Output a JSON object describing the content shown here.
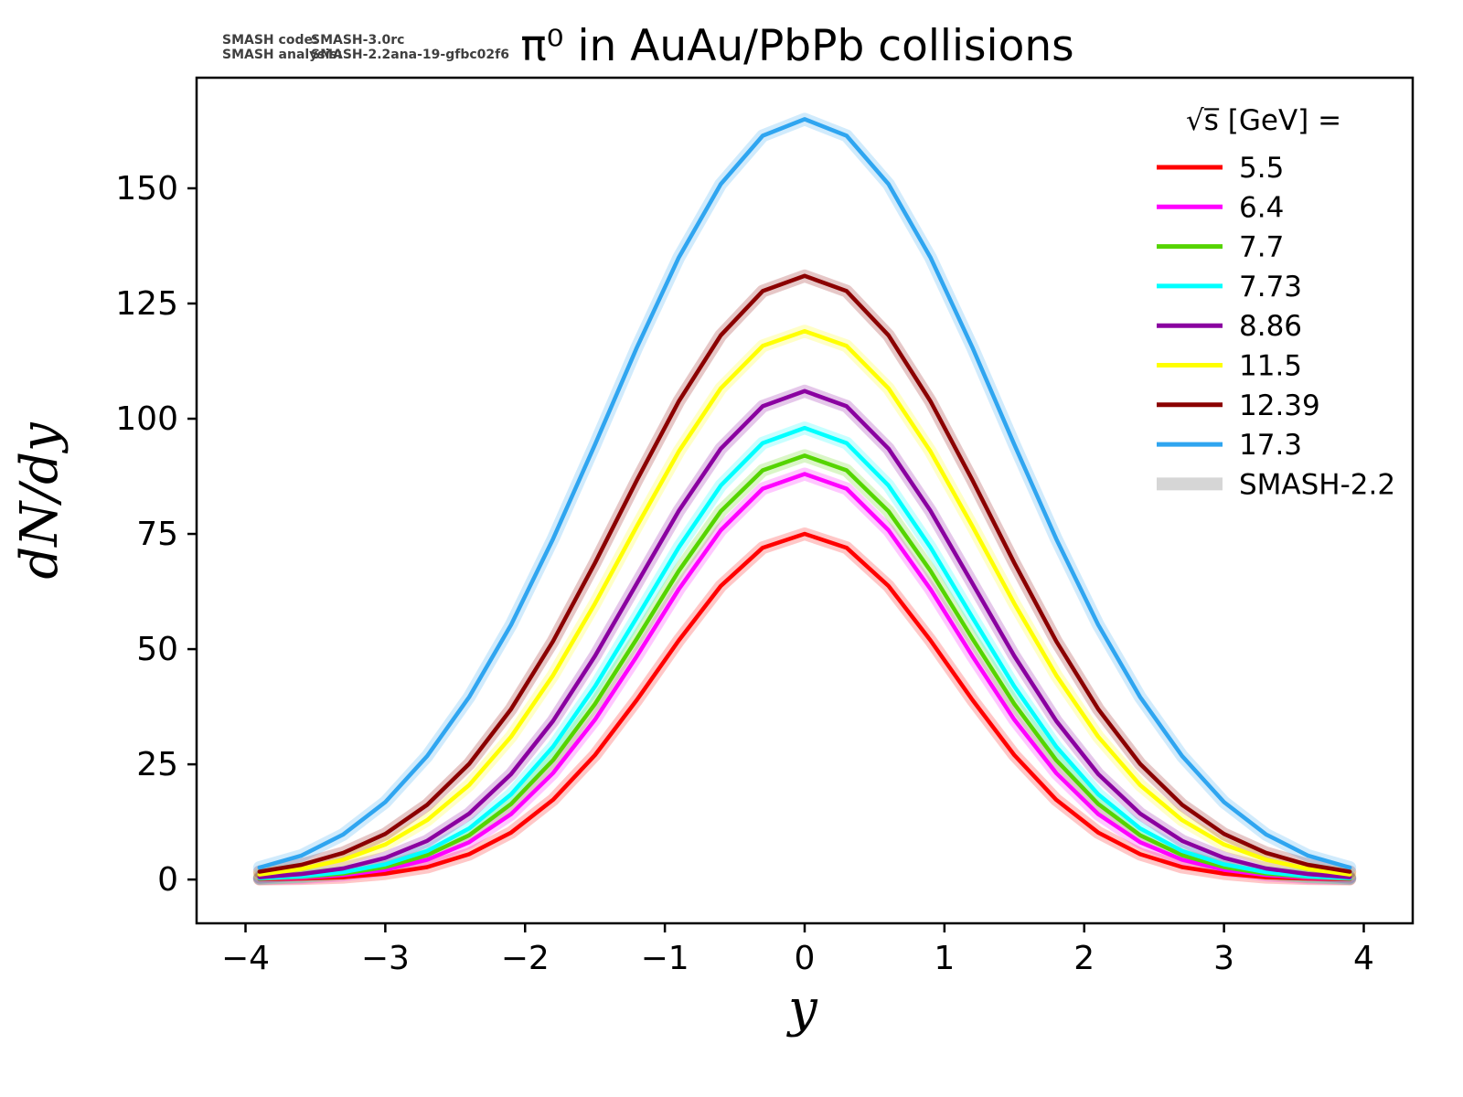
{
  "annotations": {
    "code_label": "SMASH code:",
    "code_value": "SMASH-3.0rc",
    "analysis_label": "SMASH analysis:",
    "analysis_value": "SMASH-2.2ana-19-gfbc02f6"
  },
  "chart_data": {
    "type": "line",
    "title": "π⁰ in AuAu/PbPb collisions",
    "xlabel": "y",
    "ylabel": "dN/dy",
    "xlim": [
      -4.35,
      4.35
    ],
    "ylim": [
      -9.5,
      174
    ],
    "grid": false,
    "legend_position": "upper right",
    "legend_title": "√s̅  [GeV] =",
    "band_label": "SMASH-2.2",
    "band_color": "#d6d6d6",
    "xticks": [
      -4,
      -3,
      -2,
      -1,
      0,
      1,
      2,
      3,
      4
    ],
    "xtick_labels": [
      "−4",
      "−3",
      "−2",
      "−1",
      "0",
      "1",
      "2",
      "3",
      "4"
    ],
    "yticks": [
      0,
      25,
      50,
      75,
      100,
      125,
      150
    ],
    "ytick_labels": [
      "0",
      "25",
      "50",
      "75",
      "100",
      "125",
      "150"
    ],
    "x": [
      -3.9,
      -3.6,
      -3.3,
      -3.0,
      -2.7,
      -2.4,
      -2.1,
      -1.8,
      -1.5,
      -1.2,
      -0.9,
      -0.6,
      -0.3,
      0,
      0.3,
      0.6,
      0.9,
      1.2,
      1.5,
      1.8,
      2.1,
      2.4,
      2.7,
      3.0,
      3.3,
      3.6,
      3.9
    ],
    "series": [
      {
        "name": "5.5",
        "color": "#ff0000",
        "peak": 75,
        "values": [
          0.1,
          0.2,
          0.5,
          1.3,
          2.7,
          5.5,
          10.2,
          17.3,
          27.0,
          39.0,
          51.9,
          63.7,
          72.0,
          75.0,
          72.0,
          63.7,
          51.9,
          39.0,
          27.0,
          17.3,
          10.2,
          5.5,
          2.7,
          1.3,
          0.5,
          0.2,
          0.1
        ]
      },
      {
        "name": "6.4",
        "color": "#ff00ff",
        "peak": 88,
        "values": [
          0.2,
          0.4,
          1.0,
          2.1,
          4.3,
          8.1,
          14.2,
          23.1,
          34.7,
          48.5,
          63.0,
          75.8,
          84.8,
          88.0,
          84.8,
          75.8,
          63.0,
          48.5,
          34.7,
          23.1,
          14.2,
          8.1,
          4.3,
          2.1,
          1.0,
          0.4,
          0.2
        ]
      },
      {
        "name": "7.7",
        "color": "#55d400",
        "peak": 92,
        "values": [
          0.2,
          0.6,
          1.3,
          2.7,
          5.3,
          9.6,
          16.4,
          25.9,
          38.1,
          52.3,
          67.0,
          79.9,
          88.8,
          92.0,
          88.8,
          79.9,
          67.0,
          52.3,
          38.1,
          25.9,
          16.4,
          9.6,
          5.3,
          2.7,
          1.3,
          0.6,
          0.2
        ]
      },
      {
        "name": "7.73",
        "color": "#00ffff",
        "peak": 98,
        "values": [
          0.3,
          0.7,
          1.6,
          3.3,
          6.2,
          11.1,
          18.5,
          28.8,
          41.9,
          56.9,
          72.1,
          85.5,
          94.7,
          98.0,
          94.7,
          85.5,
          72.1,
          56.9,
          41.9,
          28.8,
          18.5,
          11.1,
          6.2,
          3.3,
          1.6,
          0.7,
          0.3
        ]
      },
      {
        "name": "8.86",
        "color": "#8a00a0",
        "peak": 106,
        "values": [
          0.5,
          1.2,
          2.4,
          4.7,
          8.4,
          14.3,
          22.9,
          34.4,
          48.5,
          64.3,
          80.0,
          93.5,
          102.7,
          106.0,
          102.7,
          93.5,
          80.0,
          64.3,
          48.5,
          34.4,
          22.9,
          14.3,
          8.4,
          4.7,
          2.4,
          1.2,
          0.5
        ]
      },
      {
        "name": "11.5",
        "color": "#ffff00",
        "peak": 119,
        "values": [
          1.1,
          2.3,
          4.3,
          7.6,
          12.9,
          20.5,
          31.0,
          44.3,
          59.9,
          76.7,
          92.9,
          106.6,
          115.8,
          119.0,
          115.8,
          106.6,
          92.9,
          76.7,
          59.9,
          44.3,
          31.0,
          20.5,
          12.9,
          7.6,
          4.3,
          2.3,
          1.1
        ]
      },
      {
        "name": "12.39",
        "color": "#8b0000",
        "peak": 131,
        "values": [
          1.7,
          3.2,
          5.8,
          9.9,
          16.2,
          25.1,
          37.0,
          51.7,
          68.7,
          86.7,
          103.8,
          118.1,
          127.7,
          131.0,
          127.7,
          118.1,
          103.8,
          86.7,
          68.7,
          51.7,
          37.0,
          25.1,
          16.2,
          9.9,
          5.8,
          3.2,
          1.7
        ]
      },
      {
        "name": "17.3",
        "color": "#2fa5f0",
        "peak": 165,
        "values": [
          2.6,
          5.2,
          9.8,
          16.8,
          26.8,
          39.6,
          55.3,
          73.9,
          94.4,
          115.5,
          135.0,
          150.9,
          161.4,
          165.0,
          161.4,
          150.9,
          135.0,
          115.5,
          94.4,
          73.9,
          55.3,
          39.6,
          26.8,
          16.8,
          9.8,
          5.2,
          2.6
        ]
      }
    ]
  }
}
